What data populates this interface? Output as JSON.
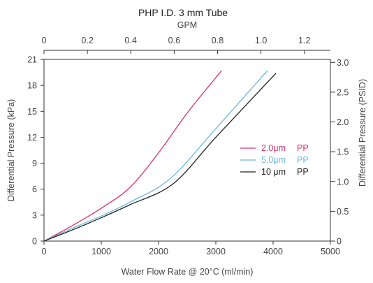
{
  "chart_data": {
    "type": "line",
    "title": "PHP  I.D. 3 mm Tube",
    "x_bottom": {
      "label": "Water Flow Rate @ 20°C (ml/min)",
      "range": [
        0,
        5000
      ],
      "ticks": [
        0,
        1000,
        2000,
        3000,
        4000,
        5000
      ],
      "tick_labels": [
        "0",
        "1000",
        "2000",
        "3000",
        "4000",
        "5000"
      ]
    },
    "x_top": {
      "label": "GPM",
      "range": [
        0,
        1.32
      ],
      "ticks": [
        0,
        0.2,
        0.4,
        0.6,
        0.8,
        1.0,
        1.2
      ],
      "tick_labels": [
        "0",
        "0.2",
        "0.4",
        "0.6",
        "0.8",
        "1.0",
        "1.2"
      ]
    },
    "y_left": {
      "label": "Differential Pressure (kPa)",
      "range": [
        0,
        21
      ],
      "ticks": [
        0,
        3,
        6,
        9,
        12,
        15,
        18,
        21
      ],
      "tick_labels": [
        "0",
        "3",
        "6",
        "9",
        "12",
        "15",
        "18",
        "21"
      ]
    },
    "y_right": {
      "label": "Differential Pressure (PSID)",
      "range": [
        0,
        3.05
      ],
      "ticks": [
        0,
        0.5,
        1.0,
        1.5,
        2.0,
        2.5,
        3.0
      ],
      "tick_labels": [
        "0",
        "0.5",
        "1.0",
        "1.5",
        "2.0",
        "2.5",
        "3.0"
      ]
    },
    "grid": false,
    "legend_position": "right-middle",
    "series": [
      {
        "name": "2.0μm",
        "media": "PP",
        "color": "#d6336c",
        "points": [
          [
            0,
            0
          ],
          [
            500,
            1.8
          ],
          [
            1000,
            3.8
          ],
          [
            1500,
            6.2
          ],
          [
            2000,
            10.2
          ],
          [
            2500,
            14.8
          ],
          [
            3100,
            19.7
          ]
        ]
      },
      {
        "name": "5.0μm",
        "media": "PP",
        "color": "#6bb8e0",
        "points": [
          [
            0,
            0
          ],
          [
            500,
            1.5
          ],
          [
            1000,
            2.9
          ],
          [
            1500,
            4.5
          ],
          [
            2200,
            7.2
          ],
          [
            3000,
            13.0
          ],
          [
            3900,
            19.7
          ]
        ]
      },
      {
        "name": "10 μm",
        "media": "PP",
        "color": "#222222",
        "points": [
          [
            0,
            0
          ],
          [
            500,
            1.3
          ],
          [
            1000,
            2.7
          ],
          [
            1500,
            4.2
          ],
          [
            2250,
            6.6
          ],
          [
            3000,
            12.0
          ],
          [
            4050,
            19.4
          ]
        ]
      }
    ]
  }
}
